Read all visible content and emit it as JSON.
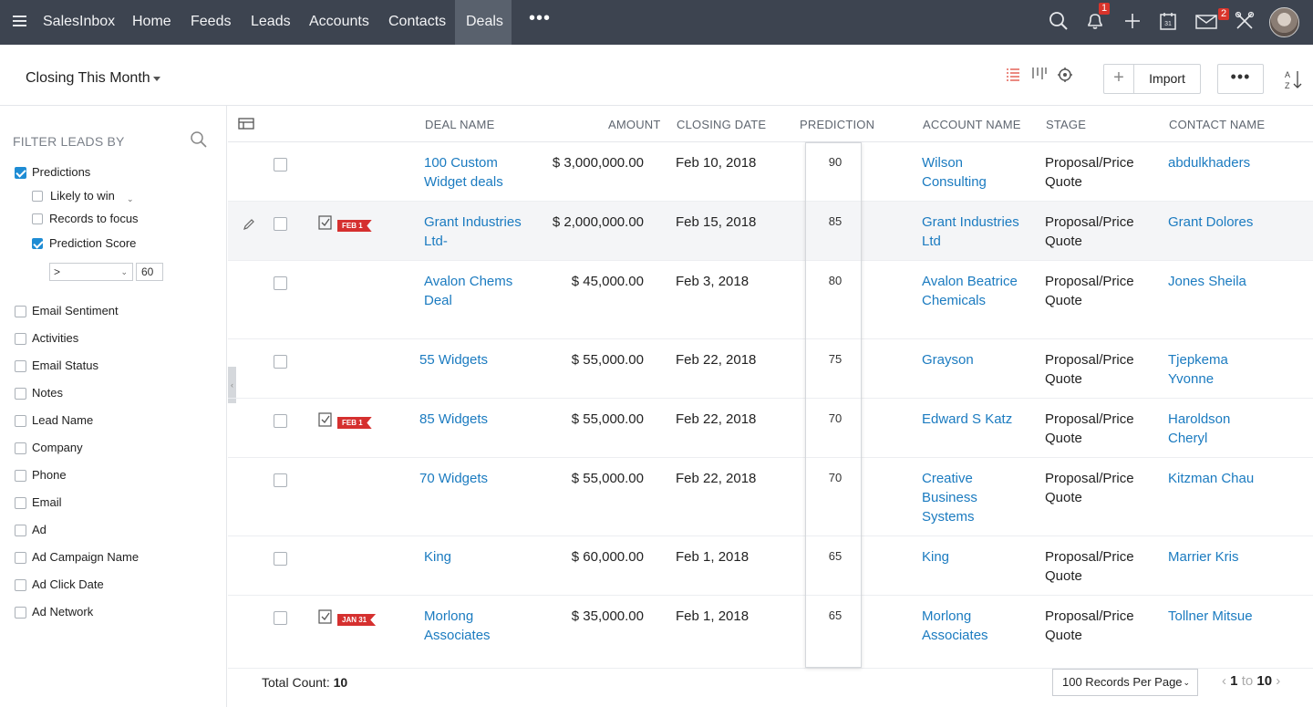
{
  "nav": {
    "brand": "SalesInbox",
    "items": [
      "Home",
      "Feeds",
      "Leads",
      "Accounts",
      "Contacts",
      "Deals"
    ],
    "active": "Deals",
    "more": "•••",
    "notification_count": "1",
    "mail_count": "2",
    "calendar_day": "31"
  },
  "toolbar": {
    "view_name": "Closing This Month",
    "plus_label": "+",
    "import_label": "Import",
    "more_label": "•••"
  },
  "filter": {
    "title": "FILTER LEADS BY",
    "predictions_label": "Predictions",
    "likely_label": "Likely to win",
    "focus_label": "Records to focus",
    "score_label": "Prediction Score",
    "operator": ">",
    "score_value": "60",
    "fields": [
      "Email Sentiment",
      "Activities",
      "Email Status",
      "Notes",
      "Lead Name",
      "Company",
      "Phone",
      "Email",
      "Ad",
      "Ad Campaign Name",
      "Ad Click Date",
      "Ad Network"
    ]
  },
  "table": {
    "headers": {
      "deal_name": "DEAL NAME",
      "amount": "AMOUNT",
      "closing_date": "CLOSING DATE",
      "prediction": "PREDICTION",
      "account_name": "ACCOUNT NAME",
      "stage": "STAGE",
      "contact_name": "CONTACT NAME"
    },
    "rows": [
      {
        "deal_name": "100 Custom Widget deals",
        "amount": "$ 3,000,000.00",
        "closing_date": "Feb 10, 2018",
        "prediction": "90",
        "account_name": "Wilson Consulting",
        "stage": "Proposal/Price Quote",
        "contact_name": "abdulkhaders",
        "flag": ""
      },
      {
        "deal_name": "Grant Industries Ltd-",
        "amount": "$ 2,000,000.00",
        "closing_date": "Feb 15, 2018",
        "prediction": "85",
        "account_name": "Grant Industries Ltd",
        "stage": "Proposal/Price Quote",
        "contact_name": "Grant Dolores",
        "flag": "FEB 1"
      },
      {
        "deal_name": "Avalon Chems Deal",
        "amount": "$ 45,000.00",
        "closing_date": "Feb 3, 2018",
        "prediction": "80",
        "account_name": "Avalon Beatrice Chemicals",
        "stage": "Proposal/Price Quote",
        "contact_name": "Jones Sheila",
        "flag": ""
      },
      {
        "deal_name": "55  Widgets",
        "amount": "$ 55,000.00",
        "closing_date": "Feb 22, 2018",
        "prediction": "75",
        "account_name": "Grayson",
        "stage": "Proposal/Price Quote",
        "contact_name": "Tjepkema Yvonne",
        "flag": ""
      },
      {
        "deal_name": "85  Widgets",
        "amount": "$ 55,000.00",
        "closing_date": "Feb 22, 2018",
        "prediction": "70",
        "account_name": "Edward S Katz",
        "stage": "Proposal/Price Quote",
        "contact_name": "Haroldson Cheryl",
        "flag": "FEB 1"
      },
      {
        "deal_name": "70  Widgets",
        "amount": "$ 55,000.00",
        "closing_date": "Feb 22, 2018",
        "prediction": "70",
        "account_name": "Creative Business Systems",
        "stage": "Proposal/Price Quote",
        "contact_name": "Kitzman Chau",
        "flag": ""
      },
      {
        "deal_name": "King",
        "amount": "$ 60,000.00",
        "closing_date": "Feb 1, 2018",
        "prediction": "65",
        "account_name": "King",
        "stage": "Proposal/Price Quote",
        "contact_name": "Marrier Kris",
        "flag": ""
      },
      {
        "deal_name": "Morlong Associates",
        "amount": "$ 35,000.00",
        "closing_date": "Feb 1, 2018",
        "prediction": "65",
        "account_name": "Morlong Associates",
        "stage": "Proposal/Price Quote",
        "contact_name": "Tollner Mitsue",
        "flag": "JAN 31"
      }
    ]
  },
  "footer": {
    "total_label": "Total Count:",
    "total_value": "10",
    "per_page": "100 Records Per Page",
    "page_from": "1",
    "page_to_label": "to",
    "page_to": "10"
  },
  "colors": {
    "nav_bg": "#3d4450",
    "link": "#1b7bc0",
    "flag": "#d5302f",
    "checkbox": "#1e8cd4"
  }
}
